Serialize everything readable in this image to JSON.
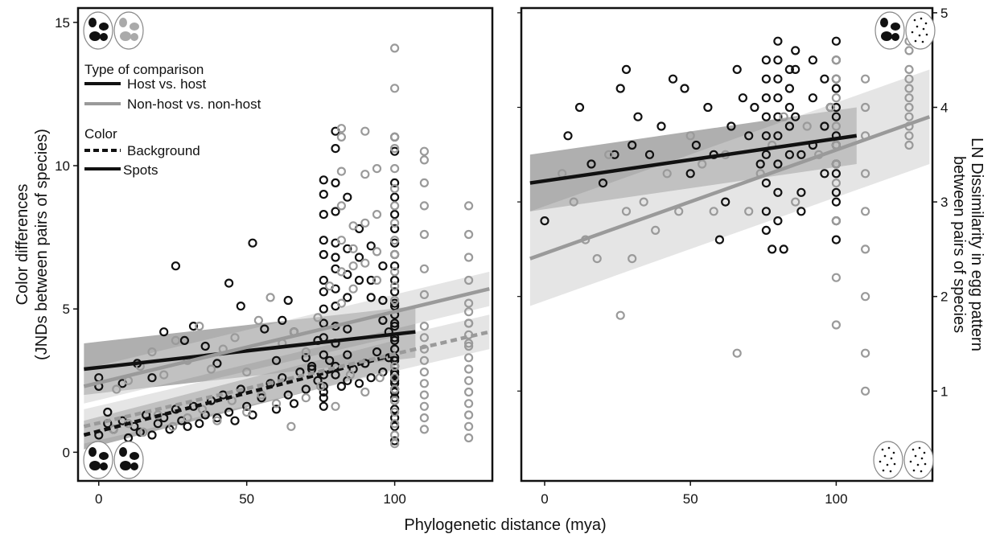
{
  "colors": {
    "host": "#111111",
    "non_host": "#9a9a9a",
    "host_band": "#6d6d6d",
    "non_host_band": "#cfcfcf"
  },
  "xlabel": "Phylogenetic distance (mya)",
  "legend": {
    "type_title": "Type of comparison",
    "host_label": "Host vs. host",
    "non_host_label": "Non-host vs. non-host",
    "color_title": "Color",
    "background_label": "Background",
    "spots_label": "Spots"
  },
  "chart_data": [
    {
      "type": "scatter",
      "panel": "left",
      "ylabel_line1": "Color differences",
      "ylabel_line2": "(JNDs between pairs of species)",
      "xlim": [
        -7,
        133
      ],
      "ylim": [
        -1,
        15.5
      ],
      "xticks": [
        0,
        50,
        100
      ],
      "yticks": [
        0,
        5,
        10,
        15
      ],
      "grid": false,
      "legend_position": "top-left",
      "icons": [
        "spotted-eggs-black-gray",
        "spotted-eggs-black-black"
      ],
      "series": [
        {
          "group": "host",
          "color": "background",
          "x": [
            0,
            3,
            5,
            8,
            10,
            12,
            14,
            16,
            18,
            20,
            22,
            24,
            26,
            28,
            30,
            32,
            34,
            36,
            38,
            40,
            42,
            44,
            46,
            48,
            50,
            52,
            55,
            58,
            60,
            62,
            64,
            66,
            68,
            70,
            72,
            74,
            76,
            78,
            80,
            82,
            84,
            86,
            88,
            90,
            92,
            94,
            96,
            98,
            100,
            100,
            100,
            100,
            100,
            100,
            100,
            100,
            100,
            100,
            100,
            100,
            100
          ],
          "y": [
            0.6,
            1.4,
            0.8,
            1.1,
            0.5,
            0.9,
            0.7,
            1.3,
            0.6,
            1.0,
            1.2,
            0.8,
            1.5,
            1.1,
            0.9,
            1.6,
            1.0,
            1.3,
            1.8,
            1.2,
            2.0,
            1.4,
            1.1,
            2.2,
            1.6,
            1.3,
            1.9,
            2.4,
            1.5,
            2.6,
            2.0,
            1.7,
            2.8,
            2.2,
            3.0,
            2.5,
            2.1,
            3.2,
            2.7,
            2.3,
            3.4,
            2.9,
            2.4,
            3.1,
            2.6,
            3.5,
            2.8,
            3.3,
            0.4,
            0.9,
            1.5,
            2.1,
            2.7,
            3.3,
            3.9,
            4.5,
            5.1,
            1.2,
            2.4,
            3.0,
            1.8
          ]
        },
        {
          "group": "host",
          "color": "spots",
          "x": [
            0,
            0,
            3,
            8,
            13,
            18,
            22,
            26,
            29,
            32,
            36,
            40,
            44,
            48,
            52,
            56,
            60,
            62,
            64,
            66,
            70,
            72,
            74,
            76,
            76,
            76,
            76,
            76,
            76,
            76,
            76,
            76,
            76,
            76,
            76,
            76,
            76,
            76,
            80,
            80,
            80,
            80,
            80,
            80,
            80,
            80,
            80,
            80,
            80,
            80,
            84,
            84,
            84,
            84,
            84,
            84,
            88,
            88,
            88,
            92,
            92,
            92,
            96,
            96,
            96,
            98,
            100,
            100,
            100,
            100,
            100,
            100,
            100,
            100,
            100,
            100,
            100,
            100,
            100,
            100,
            100,
            100,
            100,
            100,
            100,
            100,
            100
          ],
          "y": [
            2.6,
            2.3,
            1.0,
            2.4,
            3.1,
            2.6,
            4.2,
            6.5,
            3.9,
            4.4,
            3.7,
            3.1,
            5.9,
            5.1,
            7.3,
            4.3,
            3.2,
            4.6,
            5.3,
            4.2,
            3.3,
            2.9,
            3.9,
            9.5,
            9.0,
            8.3,
            7.4,
            6.9,
            6.0,
            5.6,
            5.0,
            4.5,
            4.0,
            3.4,
            2.7,
            2.3,
            1.9,
            1.6,
            11.2,
            10.6,
            9.4,
            8.4,
            7.3,
            6.8,
            6.4,
            5.7,
            5.1,
            4.4,
            3.8,
            3.0,
            8.9,
            7.1,
            6.2,
            5.4,
            4.3,
            2.5,
            7.8,
            6.8,
            6.0,
            7.2,
            6.0,
            5.4,
            6.5,
            5.3,
            4.6,
            4.2,
            11.0,
            10.5,
            9.4,
            8.9,
            8.3,
            7.8,
            7.3,
            6.9,
            6.5,
            6.0,
            5.6,
            5.2,
            4.8,
            4.4,
            4.0,
            3.6,
            3.2,
            2.8,
            2.5,
            2.2,
            1.9
          ]
        },
        {
          "group": "non-host",
          "color": "background",
          "x": [
            5,
            10,
            15,
            20,
            25,
            30,
            35,
            40,
            45,
            50,
            55,
            60,
            65,
            70,
            75,
            80,
            85,
            90,
            95,
            100,
            100,
            100,
            100,
            100,
            100,
            100,
            100,
            110,
            110,
            110,
            110,
            110,
            110,
            110,
            110,
            110,
            110,
            125,
            125,
            125,
            125,
            125,
            125,
            125,
            125,
            125,
            125,
            125,
            125
          ],
          "y": [
            0.8,
            1.0,
            0.7,
            1.3,
            0.9,
            1.2,
            1.5,
            1.1,
            1.8,
            1.4,
            2.0,
            1.7,
            0.9,
            1.9,
            2.3,
            1.6,
            2.7,
            2.1,
            2.6,
            0.3,
            0.6,
            1.0,
            1.4,
            1.8,
            2.2,
            2.6,
            3.0,
            0.8,
            1.2,
            1.6,
            2.0,
            2.4,
            2.8,
            3.2,
            3.6,
            4.0,
            4.4,
            0.5,
            0.9,
            1.3,
            1.7,
            2.1,
            2.5,
            2.9,
            3.3,
            3.7,
            4.1,
            4.5,
            4.9
          ]
        },
        {
          "group": "non-host",
          "color": "spots",
          "x": [
            6,
            10,
            14,
            18,
            22,
            26,
            30,
            34,
            38,
            42,
            46,
            50,
            54,
            58,
            62,
            66,
            70,
            74,
            78,
            82,
            82,
            82,
            82,
            82,
            82,
            82,
            86,
            86,
            86,
            86,
            90,
            90,
            90,
            90,
            94,
            94,
            94,
            94,
            100,
            100,
            100,
            100,
            100,
            100,
            100,
            100,
            100,
            100,
            100,
            100,
            100,
            110,
            110,
            110,
            110,
            110,
            110,
            110,
            125,
            125,
            125,
            125,
            125,
            125,
            125
          ],
          "y": [
            2.2,
            2.5,
            3.0,
            3.5,
            2.7,
            3.9,
            3.2,
            4.4,
            2.9,
            3.6,
            4.0,
            2.8,
            4.6,
            5.4,
            3.8,
            4.2,
            3.5,
            4.7,
            5.8,
            11.3,
            11.0,
            9.8,
            8.6,
            7.4,
            6.3,
            5.2,
            7.9,
            7.1,
            6.5,
            5.7,
            11.2,
            9.7,
            8.0,
            6.6,
            9.9,
            8.3,
            7.0,
            6.0,
            14.1,
            12.7,
            11.0,
            10.6,
            9.9,
            9.2,
            8.6,
            8.0,
            7.4,
            6.9,
            6.3,
            5.8,
            5.3,
            10.5,
            10.2,
            9.4,
            8.6,
            7.6,
            6.4,
            5.5,
            8.6,
            7.6,
            6.8,
            6.0,
            5.2,
            4.5,
            3.8
          ]
        }
      ],
      "fits": [
        {
          "group": "host",
          "color": "spots",
          "x_range": [
            -5,
            107
          ],
          "y_range": [
            2.9,
            4.2
          ],
          "band": 0.9
        },
        {
          "group": "non-host",
          "color": "spots",
          "x_range": [
            -5,
            132
          ],
          "y_range": [
            2.3,
            5.7
          ],
          "band": 0.6
        },
        {
          "group": "host",
          "color": "background",
          "x_range": [
            -5,
            100
          ],
          "y_range": [
            0.6,
            3.4
          ],
          "band": 0.5
        },
        {
          "group": "non-host",
          "color": "background",
          "x_range": [
            -5,
            132
          ],
          "y_range": [
            0.9,
            4.2
          ],
          "band": 0.6
        }
      ]
    },
    {
      "type": "scatter",
      "panel": "right",
      "ylabel_line1": "LN Dissimilarity in egg pattern",
      "ylabel_line2": "between pairs of species",
      "xlim": [
        -8,
        133
      ],
      "ylim": [
        0.05,
        5.05
      ],
      "xticks": [
        0,
        50,
        100
      ],
      "yticks": [
        1,
        2,
        3,
        4,
        5
      ],
      "grid": false,
      "legend_position": "none",
      "icons": [
        "spotted-eggs-black-dotted",
        "dotted-eggs-pair"
      ],
      "series": [
        {
          "group": "host",
          "x": [
            0,
            8,
            12,
            16,
            20,
            24,
            26,
            28,
            30,
            32,
            36,
            40,
            44,
            48,
            50,
            52,
            56,
            58,
            60,
            62,
            64,
            66,
            68,
            70,
            72,
            74,
            76,
            76,
            76,
            76,
            76,
            76,
            76,
            76,
            76,
            78,
            80,
            80,
            80,
            80,
            80,
            80,
            80,
            80,
            80,
            82,
            84,
            84,
            84,
            84,
            84,
            86,
            86,
            86,
            88,
            88,
            88,
            92,
            92,
            92,
            96,
            96,
            96,
            98,
            100,
            100,
            100,
            100,
            100,
            100,
            100,
            100,
            100,
            100,
            100,
            100,
            100,
            100
          ],
          "y": [
            2.8,
            3.7,
            4.0,
            3.4,
            3.2,
            3.5,
            4.2,
            4.4,
            3.6,
            3.9,
            3.5,
            3.8,
            4.3,
            4.2,
            3.3,
            3.6,
            4.0,
            3.5,
            2.6,
            3.0,
            3.8,
            4.4,
            4.1,
            3.7,
            4.0,
            3.4,
            4.5,
            4.3,
            4.1,
            3.9,
            3.7,
            3.5,
            3.2,
            2.9,
            2.7,
            2.5,
            4.7,
            4.5,
            4.3,
            4.1,
            3.9,
            3.7,
            3.4,
            3.1,
            2.8,
            2.5,
            4.4,
            4.2,
            4.0,
            3.8,
            3.5,
            4.6,
            4.4,
            3.9,
            3.5,
            3.1,
            2.9,
            4.5,
            4.1,
            3.6,
            4.3,
            3.8,
            3.3,
            4.0,
            4.7,
            4.5,
            4.3,
            4.2,
            4.0,
            3.9,
            3.7,
            3.6,
            3.4,
            3.3,
            3.1,
            3.0,
            2.8,
            2.6
          ]
        },
        {
          "group": "non-host",
          "x": [
            6,
            10,
            14,
            18,
            22,
            26,
            28,
            30,
            34,
            38,
            42,
            46,
            50,
            54,
            58,
            62,
            66,
            70,
            74,
            78,
            82,
            86,
            90,
            94,
            98,
            100,
            100,
            100,
            100,
            100,
            100,
            100,
            100,
            100,
            100,
            110,
            110,
            110,
            110,
            110,
            110,
            110,
            110,
            110,
            125,
            125,
            125,
            125,
            125,
            125,
            125,
            125,
            125,
            125,
            125
          ],
          "y": [
            3.3,
            3.0,
            2.6,
            2.4,
            3.5,
            1.8,
            2.9,
            2.4,
            3.0,
            2.7,
            3.3,
            2.9,
            3.7,
            3.4,
            2.9,
            3.5,
            1.4,
            2.9,
            3.3,
            3.6,
            3.9,
            3.0,
            3.8,
            3.5,
            4.0,
            4.5,
            4.3,
            4.1,
            3.8,
            3.6,
            3.4,
            3.2,
            2.8,
            2.2,
            1.7,
            4.3,
            4.0,
            3.7,
            3.3,
            2.9,
            2.5,
            2.0,
            1.4,
            1.0,
            4.7,
            4.6,
            4.4,
            4.3,
            4.2,
            4.1,
            4.0,
            3.9,
            3.8,
            3.7,
            3.6
          ]
        }
      ],
      "fits": [
        {
          "group": "host",
          "x_range": [
            -5,
            107
          ],
          "y_range": [
            3.2,
            3.7
          ],
          "band": 0.3
        },
        {
          "group": "non-host",
          "x_range": [
            -5,
            132
          ],
          "y_range": [
            2.4,
            3.9
          ],
          "band": 0.5
        }
      ]
    }
  ]
}
